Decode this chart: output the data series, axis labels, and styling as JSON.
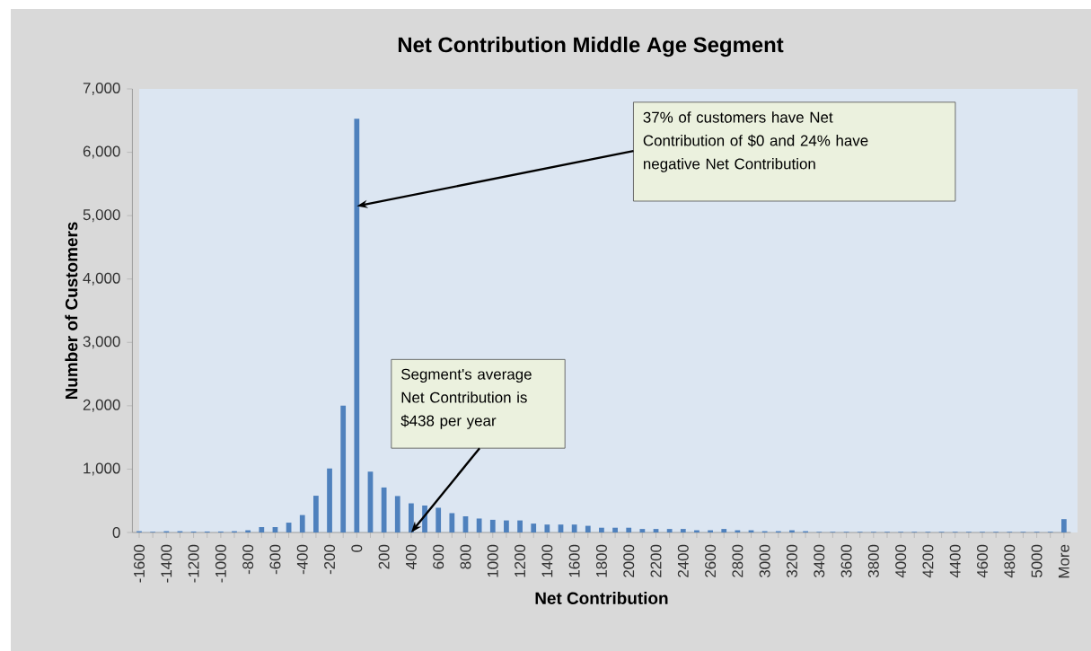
{
  "chart_data": {
    "type": "bar",
    "title": "Net Contribution Middle Age Segment",
    "xlabel": "Net Contribution",
    "ylabel": "Number of Customers",
    "categories": [
      "-1600",
      null,
      "-1400",
      null,
      "-1200",
      null,
      "-1000",
      null,
      "-800",
      null,
      "-600",
      null,
      "-400",
      null,
      "-200",
      null,
      "0",
      null,
      "200",
      null,
      "400",
      null,
      "600",
      null,
      "800",
      null,
      "1000",
      null,
      "1200",
      null,
      "1400",
      null,
      "1600",
      null,
      "1800",
      null,
      "2000",
      null,
      "2200",
      null,
      "2400",
      null,
      "2600",
      null,
      "2800",
      null,
      "3000",
      null,
      "3200",
      null,
      "3400",
      null,
      "3600",
      null,
      "3800",
      null,
      "4000",
      null,
      "4200",
      null,
      "4400",
      null,
      "4600",
      null,
      "4800",
      null,
      "5000",
      null,
      "More"
    ],
    "values": [
      20,
      10,
      20,
      20,
      15,
      15,
      15,
      20,
      35,
      85,
      85,
      155,
      275,
      580,
      1010,
      2000,
      6530,
      960,
      710,
      575,
      460,
      425,
      390,
      305,
      255,
      220,
      200,
      190,
      190,
      140,
      125,
      125,
      125,
      105,
      75,
      75,
      75,
      55,
      55,
      55,
      55,
      35,
      35,
      55,
      35,
      35,
      20,
      20,
      35,
      20,
      10,
      10,
      10,
      10,
      10,
      10,
      10,
      10,
      10,
      10,
      10,
      10,
      10,
      10,
      10,
      10,
      10,
      10,
      210
    ],
    "color": "#4f81bd",
    "ylim": [
      0,
      7000
    ],
    "yticks": [
      0,
      {
        "value": 1000,
        "label": "1,000"
      },
      {
        "value": 2000,
        "label": "2,000"
      },
      {
        "value": 3000,
        "label": "3,000"
      },
      {
        "value": 4000,
        "label": "4,000"
      },
      {
        "value": 5000,
        "label": "5,000"
      },
      {
        "value": 6000,
        "label": "6,000"
      },
      {
        "value": 7000,
        "label": "7,000"
      }
    ],
    "grid": false,
    "annotations": [
      {
        "text": "37% of customers have Net Contribution of $0 and 24% have negative Net Contribution",
        "x": "0",
        "y": 5150
      },
      {
        "text": "Segment's average Net Contribution is $438 per year",
        "x": "400",
        "y": 0
      }
    ]
  }
}
